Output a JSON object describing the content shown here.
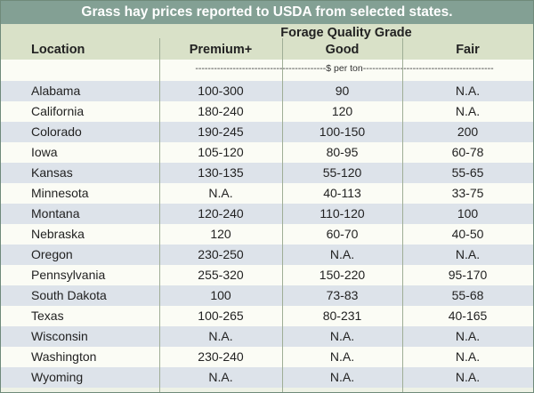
{
  "title": "Grass hay prices reported to USDA from selected states.",
  "headers": {
    "location": "Location",
    "group": "Forage Quality Grade",
    "premium": "Premium+",
    "good": "Good",
    "fair": "Fair",
    "unit": "------------------------------------------$ per ton------------------------------------------"
  },
  "rows": [
    {
      "location": "Alabama",
      "premium": "100-300",
      "good": "90",
      "fair": "N.A."
    },
    {
      "location": "California",
      "premium": "180-240",
      "good": "120",
      "fair": "N.A."
    },
    {
      "location": "Colorado",
      "premium": "190-245",
      "good": "100-150",
      "fair": "200"
    },
    {
      "location": "Iowa",
      "premium": "105-120",
      "good": "80-95",
      "fair": "60-78"
    },
    {
      "location": "Kansas",
      "premium": "130-135",
      "good": "55-120",
      "fair": "55-65"
    },
    {
      "location": "Minnesota",
      "premium": "N.A.",
      "good": "40-113",
      "fair": "33-75"
    },
    {
      "location": "Montana",
      "premium": "120-240",
      "good": "110-120",
      "fair": "100"
    },
    {
      "location": "Nebraska",
      "premium": "120",
      "good": "60-70",
      "fair": "40-50"
    },
    {
      "location": "Oregon",
      "premium": "230-250",
      "good": "N.A.",
      "fair": "N.A."
    },
    {
      "location": "Pennsylvania",
      "premium": "255-320",
      "good": "150-220",
      "fair": "95-170"
    },
    {
      "location": "South Dakota",
      "premium": "100",
      "good": "73-83",
      "fair": "55-68"
    },
    {
      "location": "Texas",
      "premium": "100-265",
      "good": "80-231",
      "fair": "40-165"
    },
    {
      "location": "Wisconsin",
      "premium": "N.A.",
      "good": "N.A.",
      "fair": "N.A."
    },
    {
      "location": "Washington",
      "premium": "230-240",
      "good": "N.A.",
      "fair": "N.A."
    },
    {
      "location": "Wyoming",
      "premium": "N.A.",
      "good": "N.A.",
      "fair": "N.A."
    }
  ]
}
